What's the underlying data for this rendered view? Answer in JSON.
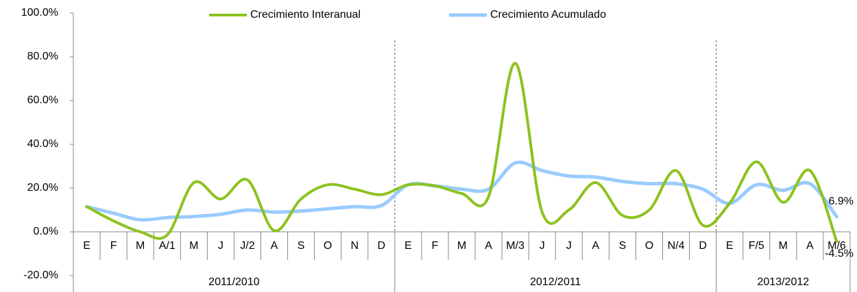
{
  "chart_data": {
    "type": "line",
    "groups": [
      {
        "name": "2011/2010",
        "categories": [
          "E",
          "F",
          "M",
          "A/1",
          "M",
          "J",
          "J/2",
          "A",
          "S",
          "O",
          "N",
          "D"
        ]
      },
      {
        "name": "2012/2011",
        "categories": [
          "E",
          "F",
          "M",
          "A",
          "M/3",
          "J",
          "J",
          "A",
          "S",
          "O",
          "N/4",
          "D"
        ]
      },
      {
        "name": "2013/2012",
        "categories": [
          "E",
          "F/5",
          "M",
          "A",
          "M/6"
        ]
      }
    ],
    "series": [
      {
        "name": "Crecimiento Interanual",
        "color": "#8dc21f",
        "values": [
          11.5,
          5,
          0,
          -1.5,
          22.5,
          15,
          23.7,
          0.5,
          15,
          21.5,
          19.5,
          17,
          21.5,
          21,
          17.5,
          16,
          77,
          9,
          10,
          22.5,
          7.5,
          10,
          28,
          3,
          13,
          32,
          13.5,
          28,
          -4.5
        ],
        "value_labels": [
          null,
          null,
          null,
          null,
          null,
          null,
          null,
          null,
          null,
          null,
          null,
          null,
          null,
          null,
          null,
          null,
          null,
          null,
          null,
          null,
          null,
          null,
          null,
          null,
          null,
          null,
          null,
          null,
          "-4.5%"
        ]
      },
      {
        "name": "Crecimiento Acumulado",
        "color": "#99ccff",
        "values": [
          11.5,
          8.5,
          5.5,
          6.5,
          7,
          8,
          10,
          9,
          9.5,
          10.5,
          11.5,
          12,
          21.5,
          21,
          19.5,
          19.5,
          31.5,
          28,
          25.5,
          25,
          23,
          22,
          22,
          19.5,
          13,
          21.5,
          19,
          22,
          6.9
        ],
        "value_labels": [
          null,
          null,
          null,
          null,
          null,
          null,
          null,
          null,
          null,
          null,
          null,
          null,
          null,
          null,
          null,
          null,
          null,
          null,
          null,
          null,
          null,
          null,
          null,
          null,
          null,
          null,
          null,
          null,
          "6.9%"
        ]
      }
    ],
    "ylim": [
      -20,
      100
    ],
    "yticks": [
      {
        "value": -20,
        "label": "-20.0%"
      },
      {
        "value": 0,
        "label": "0.0%"
      },
      {
        "value": 20,
        "label": "20.0%"
      },
      {
        "value": 40,
        "label": "40.0%"
      },
      {
        "value": 60,
        "label": "60.0%"
      },
      {
        "value": 80,
        "label": "80.0%"
      },
      {
        "value": 100,
        "label": "100.0%"
      }
    ],
    "legend": "top"
  }
}
